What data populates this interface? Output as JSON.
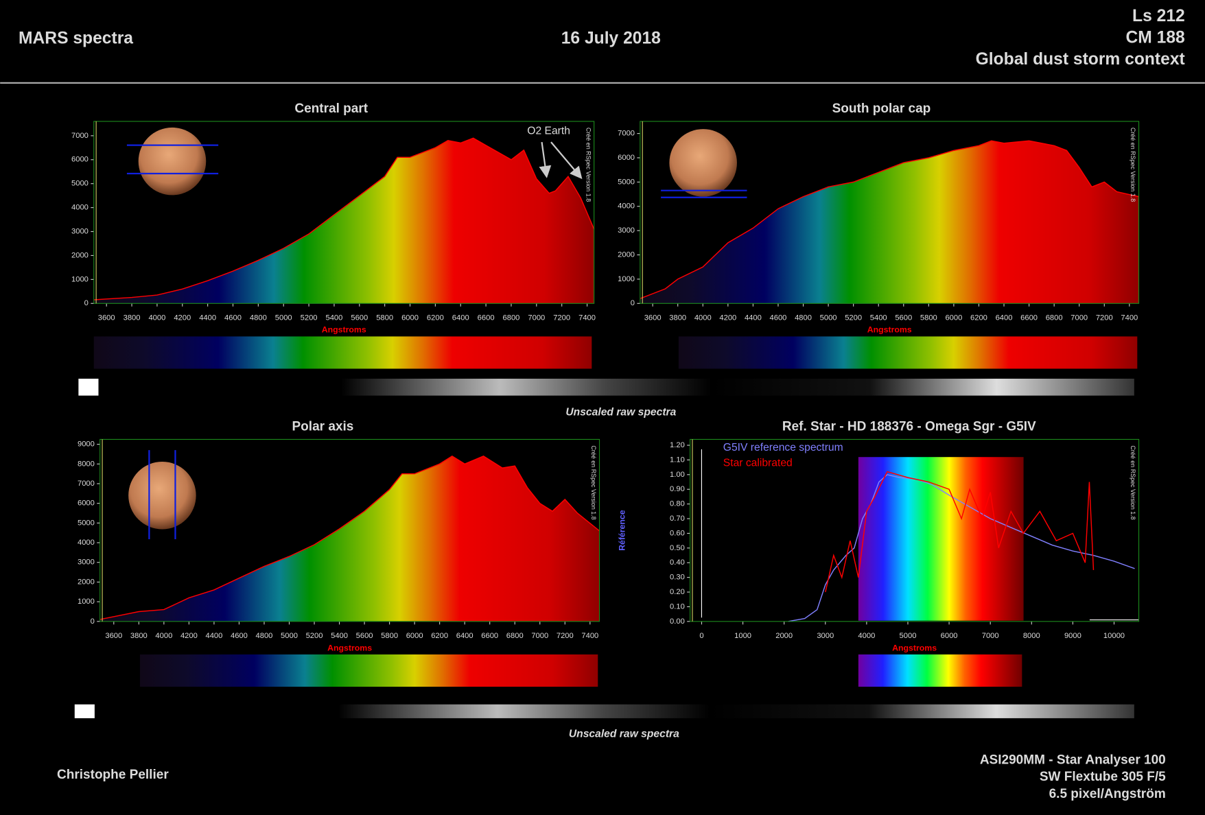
{
  "header": {
    "title": "MARS spectra",
    "date": "16 July 2018",
    "ls": "Ls 212",
    "cm": "CM 188",
    "context": "Global dust storm context"
  },
  "captions": [
    "Unscaled raw spectra",
    "Unscaled raw spectra"
  ],
  "footer": {
    "author": "Christophe Pellier",
    "equipment": [
      "ASI290MM - Star Analyser 100",
      "SW Flextube 305 F/5",
      "6.5 pixel/Angström"
    ]
  },
  "chart_data": [
    {
      "type": "line",
      "title": "Central part",
      "area": true,
      "xlabel": "Angstroms",
      "watermark": "Créé en RSpec Version 1.8",
      "annotation": "O2 Earth",
      "x": [
        3500,
        3800,
        4000,
        4200,
        4400,
        4600,
        4800,
        5000,
        5200,
        5400,
        5600,
        5800,
        5900,
        6000,
        6200,
        6300,
        6400,
        6500,
        6600,
        6800,
        6900,
        7000,
        7100,
        7150,
        7250,
        7350,
        7455
      ],
      "series": [
        {
          "color": "#ff0000",
          "values": [
            150,
            250,
            350,
            600,
            950,
            1350,
            1800,
            2300,
            2900,
            3700,
            4500,
            5300,
            6100,
            6100,
            6500,
            6800,
            6700,
            6900,
            6600,
            6000,
            6400,
            5200,
            4600,
            4700,
            5300,
            4400,
            3100
          ]
        }
      ],
      "xlim": [
        3500,
        7455
      ],
      "ylim": [
        0,
        7600
      ],
      "xticks": [
        3600,
        3800,
        4000,
        4200,
        4400,
        4600,
        4800,
        5000,
        5200,
        5400,
        5600,
        5800,
        6000,
        6200,
        6400,
        6600,
        6800,
        7000,
        7200,
        7400
      ],
      "yticks": [
        0,
        1000,
        2000,
        3000,
        4000,
        5000,
        6000,
        7000
      ]
    },
    {
      "type": "line",
      "title": "South polar cap",
      "area": true,
      "xlabel": "Angstroms",
      "watermark": "Créé en RSpec Version 1.8",
      "x": [
        3500,
        3700,
        3800,
        4000,
        4200,
        4400,
        4600,
        4800,
        5000,
        5200,
        5400,
        5600,
        5800,
        6000,
        6200,
        6300,
        6400,
        6600,
        6800,
        6900,
        7000,
        7100,
        7200,
        7300,
        7475
      ],
      "series": [
        {
          "color": "#ff0000",
          "values": [
            200,
            600,
            1000,
            1500,
            2500,
            3100,
            3900,
            4400,
            4800,
            5000,
            5400,
            5800,
            6000,
            6300,
            6500,
            6700,
            6600,
            6700,
            6500,
            6300,
            5600,
            4800,
            5000,
            4600,
            4400
          ]
        }
      ],
      "xlim": [
        3500,
        7475
      ],
      "ylim": [
        0,
        7500
      ],
      "xticks": [
        3600,
        3800,
        4000,
        4200,
        4400,
        4600,
        4800,
        5000,
        5200,
        5400,
        5600,
        5800,
        6000,
        6200,
        6400,
        6600,
        6800,
        7000,
        7200,
        7400
      ],
      "yticks": [
        0,
        1000,
        2000,
        3000,
        4000,
        5000,
        6000,
        7000
      ]
    },
    {
      "type": "line",
      "title": "Polar axis",
      "area": true,
      "xlabel": "Angstroms",
      "watermark": "Créé en RSpec Version 1.8",
      "x": [
        3490,
        3800,
        4000,
        4200,
        4400,
        4600,
        4800,
        5000,
        5200,
        5400,
        5600,
        5800,
        5900,
        6000,
        6200,
        6300,
        6400,
        6550,
        6700,
        6800,
        6900,
        7000,
        7100,
        7200,
        7300,
        7475
      ],
      "series": [
        {
          "color": "#ff0000",
          "values": [
            100,
            500,
            600,
            1200,
            1600,
            2200,
            2800,
            3300,
            3900,
            4700,
            5600,
            6700,
            7500,
            7500,
            8000,
            8400,
            8000,
            8400,
            7800,
            7900,
            6800,
            6000,
            5600,
            6200,
            5500,
            4600
          ]
        }
      ],
      "xlim": [
        3490,
        7475
      ],
      "ylim": [
        0,
        9250
      ],
      "xticks": [
        3600,
        3800,
        4000,
        4200,
        4400,
        4600,
        4800,
        5000,
        5200,
        5400,
        5600,
        5800,
        6000,
        6200,
        6400,
        6600,
        6800,
        7000,
        7200,
        7400
      ],
      "yticks": [
        0,
        1000,
        2000,
        3000,
        4000,
        5000,
        6000,
        7000,
        8000,
        9000
      ]
    },
    {
      "type": "line",
      "title": "Ref. Star - HD 188376 - Omega Sgr - G5IV",
      "area": false,
      "xlabel": "Angstroms",
      "ylabel": "Référence",
      "watermark": "Créé en RSpec Version 1.8",
      "series": [
        {
          "name": "G5IV reference spectrum",
          "color": "#8080ff",
          "x": [
            2100,
            2500,
            2800,
            3000,
            3200,
            3500,
            3700,
            3900,
            4100,
            4300,
            4500,
            4800,
            5200,
            5600,
            6000,
            6500,
            7000,
            7500,
            8000,
            8500,
            9000,
            9500,
            10000,
            10500
          ],
          "values": [
            0,
            0.02,
            0.08,
            0.25,
            0.35,
            0.45,
            0.5,
            0.7,
            0.8,
            0.95,
            1.0,
            0.98,
            0.97,
            0.93,
            0.86,
            0.78,
            0.7,
            0.64,
            0.58,
            0.52,
            0.48,
            0.45,
            0.41,
            0.36
          ]
        },
        {
          "name": "Star calibrated",
          "color": "#ff0000",
          "x": [
            3000,
            3200,
            3400,
            3600,
            3800,
            4000,
            4200,
            4500,
            5000,
            5500,
            6000,
            6300,
            6500,
            6800,
            7000,
            7200,
            7500,
            7800,
            8200,
            8600,
            9000,
            9300,
            9400,
            9500
          ],
          "values": [
            0.2,
            0.45,
            0.3,
            0.55,
            0.3,
            0.75,
            0.85,
            1.02,
            0.98,
            0.95,
            0.9,
            0.7,
            0.9,
            0.7,
            0.88,
            0.5,
            0.75,
            0.6,
            0.75,
            0.55,
            0.6,
            0.4,
            0.95,
            0.35
          ]
        }
      ],
      "xlim": [
        -280,
        10600
      ],
      "ylim": [
        0,
        1.24
      ],
      "xticks": [
        0,
        1000,
        2000,
        3000,
        4000,
        5000,
        6000,
        7000,
        8000,
        9000,
        10000
      ],
      "yticks": [
        {
          "value": 0,
          "label": "0.00"
        },
        {
          "value": 0.1,
          "label": "0.10"
        },
        {
          "value": 0.2,
          "label": "0.20"
        },
        {
          "value": 0.3,
          "label": "0.30"
        },
        {
          "value": 0.4,
          "label": "0.40"
        },
        {
          "value": 0.5,
          "label": "0.50"
        },
        {
          "value": 0.6,
          "label": "0.60"
        },
        {
          "value": 0.7,
          "label": "0.70"
        },
        {
          "value": 0.8,
          "label": "0.80"
        },
        {
          "value": 0.9,
          "label": "0.90"
        },
        {
          "value": 1.0,
          "label": "1.00"
        },
        {
          "value": 1.1,
          "label": "1.10"
        },
        {
          "value": 1.2,
          "label": "1.20"
        }
      ]
    }
  ]
}
